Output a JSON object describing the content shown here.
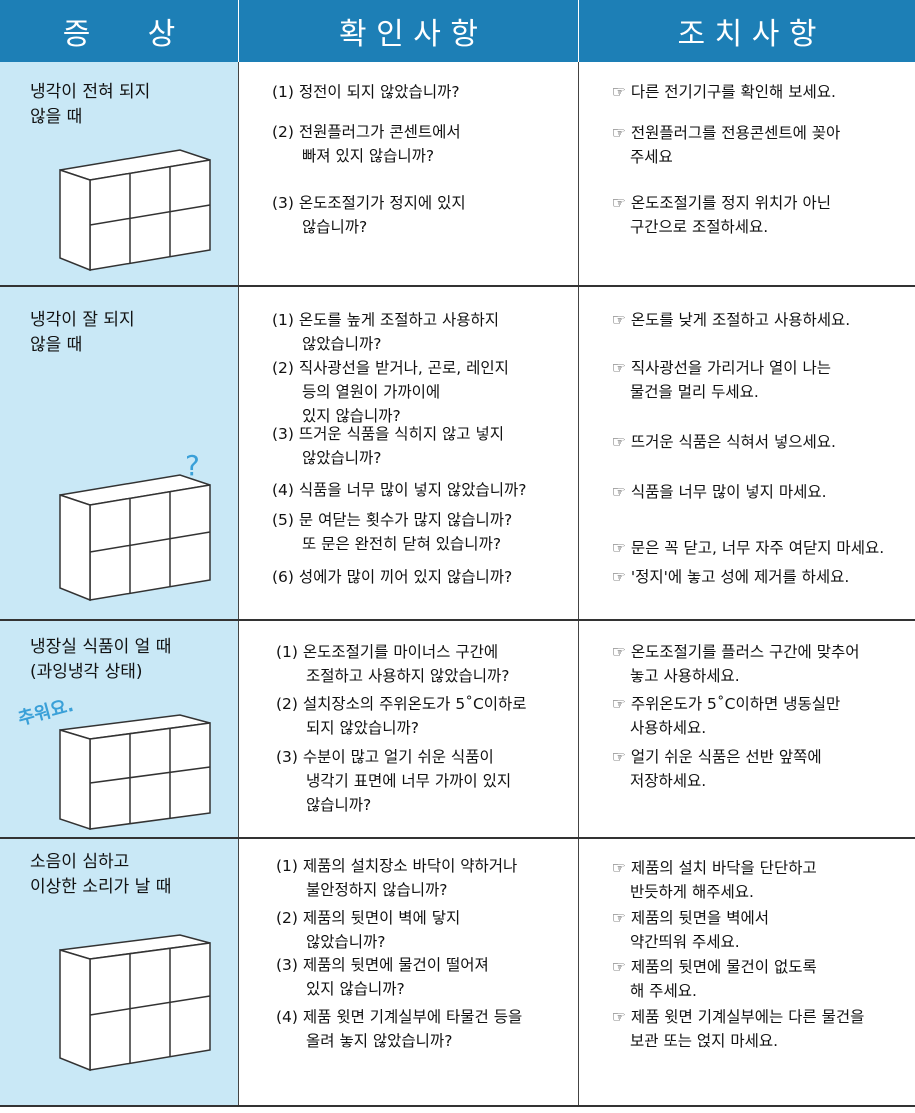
{
  "header": {
    "columns": [
      "증      상",
      "확 인 사 항",
      "조 치 사 항"
    ]
  },
  "rows": [
    {
      "symptom": "냉각이 전혀 되지\n않을 때",
      "checks": [
        "(1) 정전이 되지 않았습니까?",
        "(2) 전원플러그가 콘센트에서\n빠져 있지 않습니까?",
        "(3) 온도조절기가 정지에 있지\n않습니까?"
      ],
      "actions": [
        "☞ 다른 전기기구를 확인해 보세요.",
        "☞ 전원플러그를 전용콘센트에 꽂아\n주세요",
        "☞ 온도조절기를 정지 위치가 아닌\n구간으로 조절하세요."
      ]
    },
    {
      "symptom": "냉각이 잘 되지\n않을 때",
      "illustration_text": "?",
      "checks": [
        "(1) 온도를 높게 조절하고 사용하지\n않았습니까?",
        "(2) 직사광선을 받거나, 곤로, 레인지\n등의 열원이 가까이에\n있지 않습니까?",
        "(3) 뜨거운 식품을 식히지 않고 넣지\n않았습니까?",
        "(4) 식품을 너무 많이 넣지 않았습니까?",
        "(5) 문 여닫는 횟수가 많지 않습니까?\n또 문은 완전히 닫혀 있습니까?",
        "(6) 성에가 많이 끼어 있지 않습니까?"
      ],
      "actions": [
        "☞ 온도를 낮게 조절하고 사용하세요.",
        "☞ 직사광선을 가리거나 열이 나는\n물건을 멀리 두세요.",
        "☞ 뜨거운 식품은 식혀서 넣으세요.",
        "☞ 식품을 너무 많이 넣지 마세요.",
        "☞ 문은 꼭 닫고, 너무 자주 여닫지 마세요.",
        "☞ '정지'에 놓고 성에 제거를 하세요."
      ]
    },
    {
      "symptom": "냉장실 식품이 얼 때\n(과잉냉각 상태)",
      "illustration_text": "추워요.",
      "checks": [
        "(1) 온도조절기를 마이너스 구간에\n조절하고 사용하지 않았습니까?",
        "(2) 설치장소의 주위온도가 5˚C이하로\n되지 않았습니까?",
        "(3) 수분이 많고 얼기 쉬운 식품이\n냉각기 표면에 너무 가까이 있지\n않습니까?"
      ],
      "actions": [
        "☞ 온도조절기를 플러스 구간에 맞추어\n놓고 사용하세요.",
        "☞ 주위온도가 5˚C이하면 냉동실만\n사용하세요.",
        "☞ 얼기 쉬운 식품은 선반 앞쪽에\n저장하세요."
      ]
    },
    {
      "symptom": "소음이 심하고\n이상한 소리가 날 때",
      "checks": [
        "(1) 제품의 설치장소 바닥이 약하거나\n불안정하지 않습니까?",
        "(2) 제품의 뒷면이 벽에 닿지\n않았습니까?",
        "(3) 제품의 뒷면에 물건이 떨어져\n있지 않습니까?",
        "(4) 제품 윗면 기계실부에 타물건 등을\n올려 놓지 않았습니까?"
      ],
      "actions": [
        "☞ 제품의 설치 바닥을 단단하고\n반듯하게 해주세요.",
        "☞ 제품의 뒷면을 벽에서\n약간띄워 주세요.",
        "☞ 제품의 뒷면에 물건이 없도록\n해 주세요.",
        "☞ 제품 윗면 기계실부에는 다른 물건을\n보관 또는 얹지 마세요."
      ]
    }
  ]
}
